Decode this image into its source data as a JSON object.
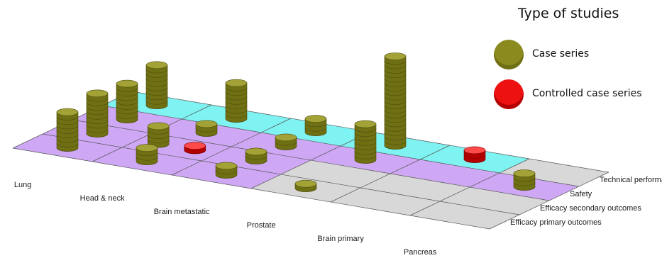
{
  "chart_data": {
    "type": "bar",
    "subtype": "3d-stacked-discs",
    "title": "",
    "categories": [
      "Lung",
      "Head & neck",
      "Brain metastatic",
      "Prostate",
      "Brain primary",
      "Pancreas"
    ],
    "outcomes": [
      "Technical performace",
      "Safety",
      "Efficacy secondary outcomes",
      "Efficacy primary outcomes"
    ],
    "legend": {
      "title": "Type of studies",
      "entries": [
        {
          "name": "Case series",
          "color": "#8a8a1e"
        },
        {
          "name": "Controlled case series",
          "color": "#ee1111"
        }
      ]
    },
    "shaded_cells": [
      {
        "category": "Lung",
        "outcome": "Technical performace",
        "color": "#7ff2f2"
      },
      {
        "category": "Head & neck",
        "outcome": "Technical performace",
        "color": "#7ff2f2"
      },
      {
        "category": "Brain metastatic",
        "outcome": "Technical performace",
        "color": "#7ff2f2"
      },
      {
        "category": "Prostate",
        "outcome": "Technical performace",
        "color": "#7ff2f2"
      },
      {
        "category": "Brain primary",
        "outcome": "Technical performace",
        "color": "#7ff2f2"
      },
      {
        "category": "Lung",
        "outcome": "Safety",
        "color": "#cfa8f5"
      },
      {
        "category": "Head & neck",
        "outcome": "Safety",
        "color": "#cfa8f5"
      },
      {
        "category": "Brain metastatic",
        "outcome": "Safety",
        "color": "#cfa8f5"
      },
      {
        "category": "Prostate",
        "outcome": "Safety",
        "color": "#cfa8f5"
      },
      {
        "category": "Brain primary",
        "outcome": "Safety",
        "color": "#cfa8f5"
      },
      {
        "category": "Pancreas",
        "outcome": "Safety",
        "color": "#cfa8f5"
      },
      {
        "category": "Lung",
        "outcome": "Efficacy secondary outcomes",
        "color": "#cfa8f5"
      },
      {
        "category": "Head & neck",
        "outcome": "Efficacy secondary outcomes",
        "color": "#cfa8f5"
      },
      {
        "category": "Brain metastatic",
        "outcome": "Efficacy secondary outcomes",
        "color": "#cfa8f5"
      },
      {
        "category": "Lung",
        "outcome": "Efficacy primary outcomes",
        "color": "#cfa8f5"
      },
      {
        "category": "Head & neck",
        "outcome": "Efficacy primary outcomes",
        "color": "#cfa8f5"
      },
      {
        "category": "Brain metastatic",
        "outcome": "Efficacy primary outcomes",
        "color": "#cfa8f5"
      }
    ],
    "stacks": [
      {
        "category": "Lung",
        "outcome": "Efficacy primary outcomes",
        "study_type": "Case series",
        "count": 8
      },
      {
        "category": "Lung",
        "outcome": "Efficacy secondary outcomes",
        "study_type": "Case series",
        "count": 9
      },
      {
        "category": "Lung",
        "outcome": "Safety",
        "study_type": "Case series",
        "count": 8
      },
      {
        "category": "Lung",
        "outcome": "Technical performace",
        "study_type": "Case series",
        "count": 9
      },
      {
        "category": "Head & neck",
        "outcome": "Efficacy primary outcomes",
        "study_type": "Case series",
        "count": 3
      },
      {
        "category": "Head & neck",
        "outcome": "Efficacy secondary outcomes",
        "study_type": "Case series",
        "count": 4
      },
      {
        "category": "Head & neck",
        "outcome": "Efficacy secondary outcomes",
        "study_type": "Controlled case series",
        "count": 1
      },
      {
        "category": "Head & neck",
        "outcome": "Safety",
        "study_type": "Case series",
        "count": 2
      },
      {
        "category": "Head & neck",
        "outcome": "Technical performace",
        "study_type": "Case series",
        "count": 8
      },
      {
        "category": "Brain metastatic",
        "outcome": "Efficacy primary outcomes",
        "study_type": "Case series",
        "count": 2
      },
      {
        "category": "Brain metastatic",
        "outcome": "Efficacy secondary outcomes",
        "study_type": "Case series",
        "count": 2
      },
      {
        "category": "Brain metastatic",
        "outcome": "Safety",
        "study_type": "Case series",
        "count": 2
      },
      {
        "category": "Brain metastatic",
        "outcome": "Technical performace",
        "study_type": "Case series",
        "count": 3
      },
      {
        "category": "Prostate",
        "outcome": "Efficacy primary outcomes",
        "study_type": "Case series",
        "count": 1
      },
      {
        "category": "Prostate",
        "outcome": "Safety",
        "study_type": "Case series",
        "count": 8
      },
      {
        "category": "Prostate",
        "outcome": "Technical performace",
        "study_type": "Case series",
        "count": 20
      },
      {
        "category": "Brain primary",
        "outcome": "Technical performace",
        "study_type": "Controlled case series",
        "count": 2
      },
      {
        "category": "Pancreas",
        "outcome": "Safety",
        "study_type": "Case series",
        "count": 3
      }
    ]
  }
}
